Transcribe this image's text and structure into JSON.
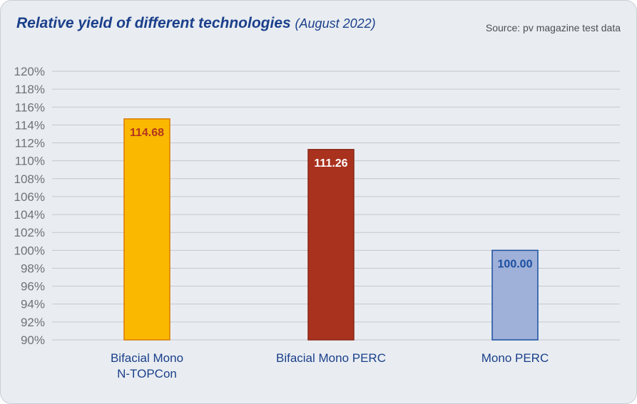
{
  "chart_data": {
    "type": "bar",
    "title": "Relative yield of different technologies",
    "subtitle": "(August 2022)",
    "source": "Source: pv magazine test data",
    "categories": [
      "Bifacial Mono N-TOPCon",
      "Bifacial Mono PERC",
      "Mono PERC"
    ],
    "category_lines": [
      [
        "Bifacial Mono",
        "N-TOPCon"
      ],
      [
        "Bifacial Mono PERC"
      ],
      [
        "Mono PERC"
      ]
    ],
    "values": [
      114.68,
      111.26,
      100.0
    ],
    "value_labels": [
      "114.68",
      "111.26",
      "100.00"
    ],
    "ylim": [
      90,
      120
    ],
    "yticks": [
      90,
      92,
      94,
      96,
      98,
      100,
      102,
      104,
      106,
      108,
      110,
      112,
      114,
      116,
      118,
      120
    ],
    "ytick_labels": [
      "90%",
      "92%",
      "94%",
      "96%",
      "98%",
      "100%",
      "102%",
      "104%",
      "106%",
      "108%",
      "110%",
      "112%",
      "114%",
      "116%",
      "118%",
      "120%"
    ],
    "xlabel": "",
    "ylabel": "",
    "grid": true,
    "colors": {
      "bars": [
        "#fbb800",
        "#a9321e",
        "#9fb0d9"
      ],
      "bar_borders": [
        "#d97a00",
        "#8a2616",
        "#1b4fa0"
      ],
      "value_text": [
        "#b4361e",
        "#ffffff",
        "#1b4fa0"
      ],
      "grid": "#c3c8ce",
      "title": "#1b3f8b"
    }
  }
}
